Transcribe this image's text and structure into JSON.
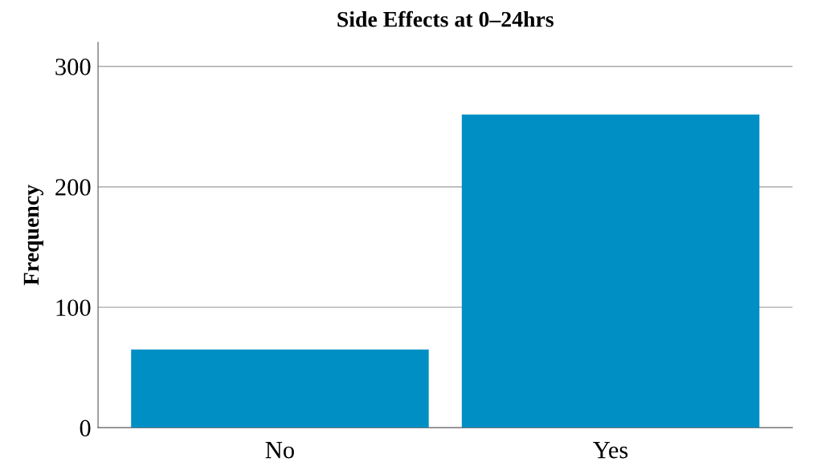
{
  "chart_data": {
    "type": "bar",
    "title": "Side Effects at 0–24hrs",
    "ylabel": "Frequency",
    "categories": [
      "No",
      "Yes"
    ],
    "values": [
      65,
      260
    ],
    "color": "#008fc5",
    "ylim": [
      0,
      320
    ],
    "yticks": [
      0,
      100,
      200,
      300
    ],
    "grid": "y"
  }
}
